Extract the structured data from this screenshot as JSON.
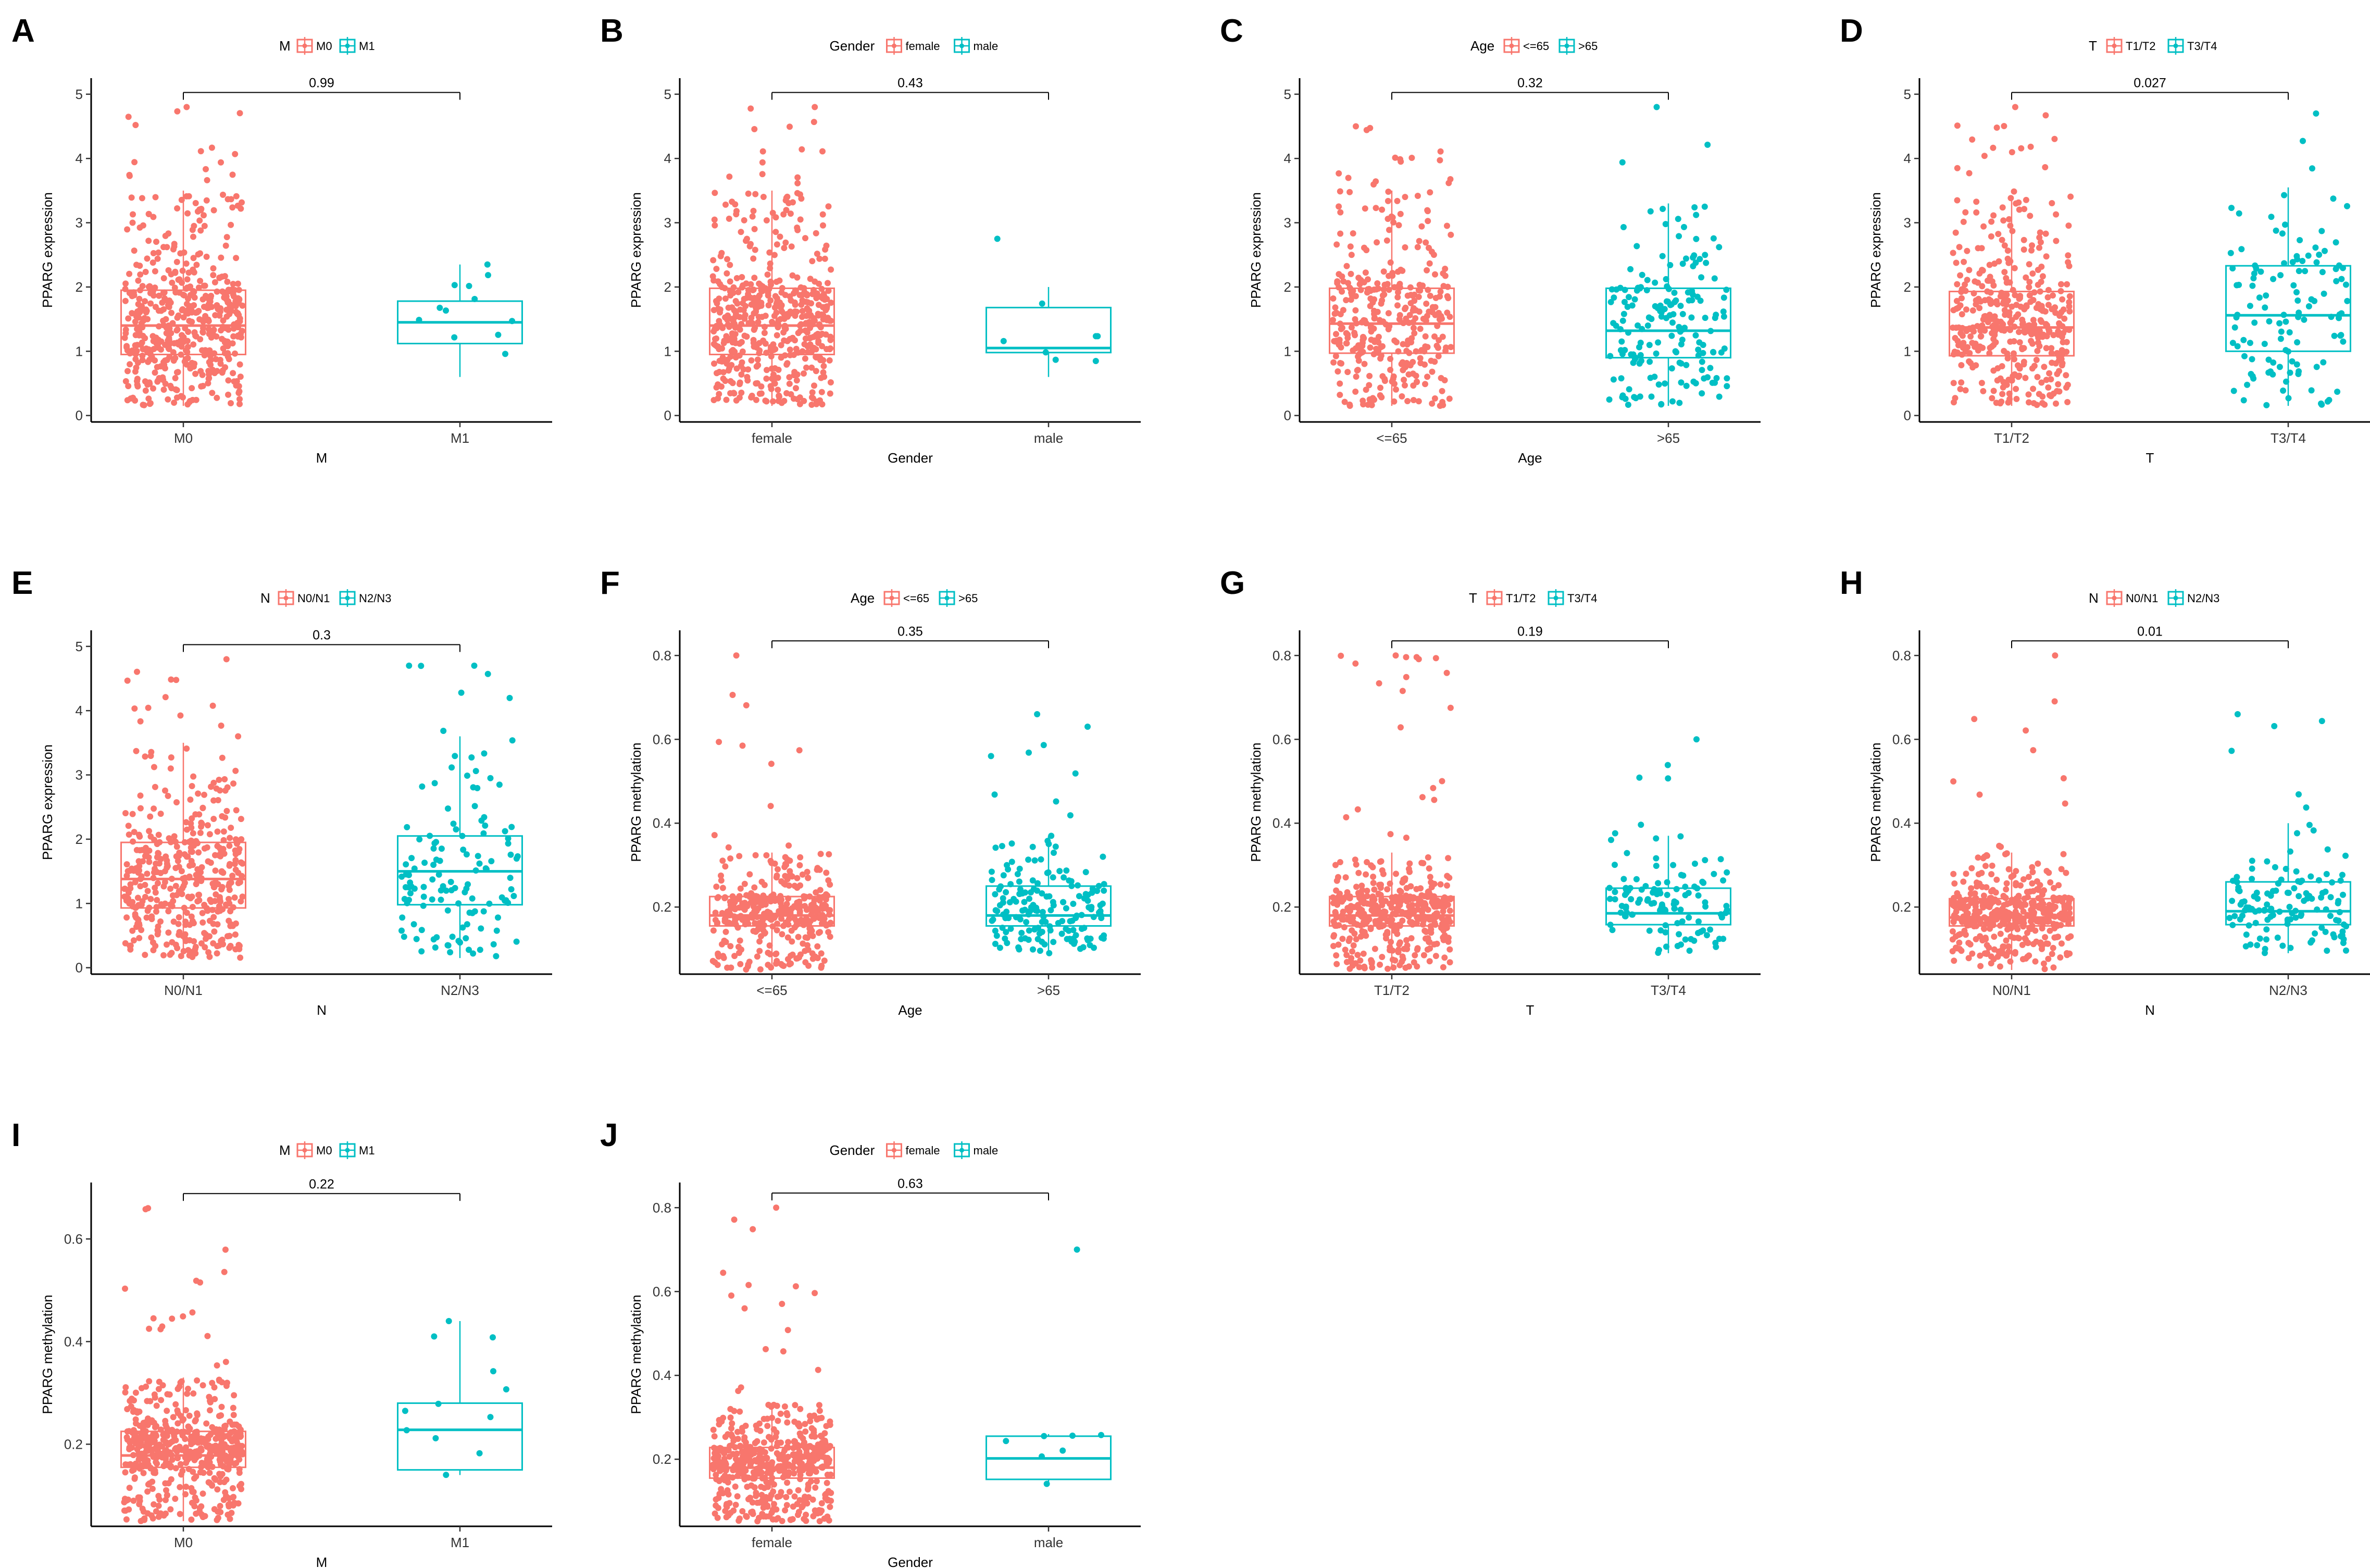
{
  "colors": {
    "red": "#F8766D",
    "teal": "#00BFC4",
    "axis": "#000000"
  },
  "chart_data": [
    {
      "id": "A",
      "type": "box",
      "title": "",
      "legend_title": "M",
      "categories": [
        "M0",
        "M1"
      ],
      "xlabel": "M",
      "ylabel": "PPARG expression",
      "ylim": [
        -0.1,
        5.25
      ],
      "yticks": [
        0,
        1,
        2,
        3,
        4,
        5
      ],
      "yticklabels": [
        "0",
        "1",
        "2",
        "3",
        "4",
        "5"
      ],
      "p_value": "0.99",
      "boxes": [
        {
          "q1": 0.95,
          "median": 1.4,
          "q3": 1.95,
          "lw": 0.15,
          "uw": 3.5,
          "n": 520,
          "max": 4.8
        },
        {
          "q1": 1.12,
          "median": 1.45,
          "q3": 1.78,
          "lw": 0.6,
          "uw": 2.35,
          "n": 12,
          "max": 2.35
        }
      ]
    },
    {
      "id": "B",
      "type": "box",
      "title": "",
      "legend_title": "Gender",
      "categories": [
        "female",
        "male"
      ],
      "xlabel": "Gender",
      "ylabel": "PPARG expression",
      "ylim": [
        -0.1,
        5.25
      ],
      "yticks": [
        0,
        1,
        2,
        3,
        4,
        5
      ],
      "yticklabels": [
        "0",
        "1",
        "2",
        "3",
        "4",
        "5"
      ],
      "p_value": "0.43",
      "boxes": [
        {
          "q1": 0.95,
          "median": 1.4,
          "q3": 1.98,
          "lw": 0.15,
          "uw": 3.5,
          "n": 520,
          "max": 4.8
        },
        {
          "q1": 0.98,
          "median": 1.05,
          "q3": 1.68,
          "lw": 0.6,
          "uw": 2.0,
          "n": 8,
          "max": 2.75
        }
      ]
    },
    {
      "id": "C",
      "type": "box",
      "title": "",
      "legend_title": "Age",
      "categories": [
        "<=65",
        ">65"
      ],
      "xlabel": "Age",
      "ylabel": "PPARG expression",
      "ylim": [
        -0.1,
        5.25
      ],
      "yticks": [
        0,
        1,
        2,
        3,
        4,
        5
      ],
      "yticklabels": [
        "0",
        "1",
        "2",
        "3",
        "4",
        "5"
      ],
      "p_value": "0.32",
      "boxes": [
        {
          "q1": 0.97,
          "median": 1.43,
          "q3": 1.98,
          "lw": 0.15,
          "uw": 3.5,
          "n": 360,
          "max": 4.5
        },
        {
          "q1": 0.9,
          "median": 1.32,
          "q3": 1.98,
          "lw": 0.15,
          "uw": 3.3,
          "n": 180,
          "max": 4.8
        }
      ]
    },
    {
      "id": "D",
      "type": "box",
      "title": "",
      "legend_title": "T",
      "categories": [
        "T1/T2",
        "T3/T4"
      ],
      "xlabel": "T",
      "ylabel": "PPARG expression",
      "ylim": [
        -0.1,
        5.25
      ],
      "yticks": [
        0,
        1,
        2,
        3,
        4,
        5
      ],
      "yticklabels": [
        "0",
        "1",
        "2",
        "3",
        "4",
        "5"
      ],
      "p_value": "0.027",
      "boxes": [
        {
          "q1": 0.93,
          "median": 1.37,
          "q3": 1.93,
          "lw": 0.15,
          "uw": 3.4,
          "n": 420,
          "max": 4.8
        },
        {
          "q1": 1.0,
          "median": 1.56,
          "q3": 2.33,
          "lw": 0.15,
          "uw": 3.55,
          "n": 120,
          "max": 4.7
        }
      ]
    },
    {
      "id": "E",
      "type": "box",
      "title": "",
      "legend_title": "N",
      "categories": [
        "N0/N1",
        "N2/N3"
      ],
      "xlabel": "N",
      "ylabel": "PPARG expression",
      "ylim": [
        -0.1,
        5.25
      ],
      "yticks": [
        0,
        1,
        2,
        3,
        4,
        5
      ],
      "yticklabels": [
        "0",
        "1",
        "2",
        "3",
        "4",
        "5"
      ],
      "p_value": "0.3",
      "boxes": [
        {
          "q1": 0.93,
          "median": 1.38,
          "q3": 1.95,
          "lw": 0.15,
          "uw": 3.5,
          "n": 420,
          "max": 4.8
        },
        {
          "q1": 0.98,
          "median": 1.5,
          "q3": 2.05,
          "lw": 0.15,
          "uw": 3.6,
          "n": 130,
          "max": 4.7
        }
      ]
    },
    {
      "id": "F",
      "type": "box",
      "title": "",
      "legend_title": "Age",
      "categories": [
        "<=65",
        ">65"
      ],
      "xlabel": "Age",
      "ylabel": "PPARG methylation",
      "ylim": [
        0.04,
        0.86
      ],
      "yticks": [
        0.2,
        0.4,
        0.6,
        0.8
      ],
      "yticklabels": [
        "0.2",
        "0.4",
        "0.6",
        "0.8"
      ],
      "p_value": "0.35",
      "boxes": [
        {
          "q1": 0.155,
          "median": 0.18,
          "q3": 0.225,
          "lw": 0.05,
          "uw": 0.33,
          "n": 360,
          "max": 0.8
        },
        {
          "q1": 0.155,
          "median": 0.18,
          "q3": 0.25,
          "lw": 0.09,
          "uw": 0.37,
          "n": 180,
          "max": 0.66
        }
      ]
    },
    {
      "id": "G",
      "type": "box",
      "title": "",
      "legend_title": "T",
      "categories": [
        "T1/T2",
        "T3/T4"
      ],
      "xlabel": "T",
      "ylabel": "PPARG methylation",
      "ylim": [
        0.04,
        0.86
      ],
      "yticks": [
        0.2,
        0.4,
        0.6,
        0.8
      ],
      "yticklabels": [
        "0.2",
        "0.4",
        "0.6",
        "0.8"
      ],
      "p_value": "0.19",
      "boxes": [
        {
          "q1": 0.155,
          "median": 0.18,
          "q3": 0.225,
          "lw": 0.05,
          "uw": 0.33,
          "n": 420,
          "max": 0.8
        },
        {
          "q1": 0.158,
          "median": 0.185,
          "q3": 0.245,
          "lw": 0.09,
          "uw": 0.37,
          "n": 120,
          "max": 0.6
        }
      ]
    },
    {
      "id": "H",
      "type": "box",
      "title": "",
      "legend_title": "N",
      "categories": [
        "N0/N1",
        "N2/N3"
      ],
      "xlabel": "N",
      "ylabel": "PPARG methylation",
      "ylim": [
        0.04,
        0.86
      ],
      "yticks": [
        0.2,
        0.4,
        0.6,
        0.8
      ],
      "yticklabels": [
        "0.2",
        "0.4",
        "0.6",
        "0.8"
      ],
      "p_value": "0.01",
      "boxes": [
        {
          "q1": 0.155,
          "median": 0.175,
          "q3": 0.22,
          "lw": 0.05,
          "uw": 0.33,
          "n": 420,
          "max": 0.8
        },
        {
          "q1": 0.158,
          "median": 0.19,
          "q3": 0.26,
          "lw": 0.09,
          "uw": 0.4,
          "n": 130,
          "max": 0.66
        }
      ]
    },
    {
      "id": "I",
      "type": "box",
      "title": "",
      "legend_title": "M",
      "categories": [
        "M0",
        "M1"
      ],
      "xlabel": "M",
      "ylabel": "PPARG methylation",
      "ylim": [
        0.04,
        0.71
      ],
      "yticks": [
        0.2,
        0.4,
        0.6
      ],
      "yticklabels": [
        "0.2",
        "0.4",
        "0.6"
      ],
      "p_value": "0.22",
      "boxes": [
        {
          "q1": 0.155,
          "median": 0.178,
          "q3": 0.225,
          "lw": 0.05,
          "uw": 0.33,
          "n": 520,
          "max": 0.66
        },
        {
          "q1": 0.15,
          "median": 0.228,
          "q3": 0.28,
          "lw": 0.14,
          "uw": 0.44,
          "n": 12,
          "max": 0.44
        }
      ]
    },
    {
      "id": "J",
      "type": "box",
      "title": "",
      "legend_title": "Gender",
      "categories": [
        "female",
        "male"
      ],
      "xlabel": "Gender",
      "ylabel": "PPARG methylation",
      "ylim": [
        0.04,
        0.86
      ],
      "yticks": [
        0.2,
        0.4,
        0.6,
        0.8
      ],
      "yticklabels": [
        "0.2",
        "0.4",
        "0.6",
        "0.8"
      ],
      "p_value": "0.63",
      "boxes": [
        {
          "q1": 0.155,
          "median": 0.18,
          "q3": 0.228,
          "lw": 0.05,
          "uw": 0.33,
          "n": 520,
          "max": 0.8
        },
        {
          "q1": 0.152,
          "median": 0.202,
          "q3": 0.255,
          "lw": 0.14,
          "uw": 0.26,
          "n": 8,
          "max": 0.7
        }
      ]
    }
  ]
}
